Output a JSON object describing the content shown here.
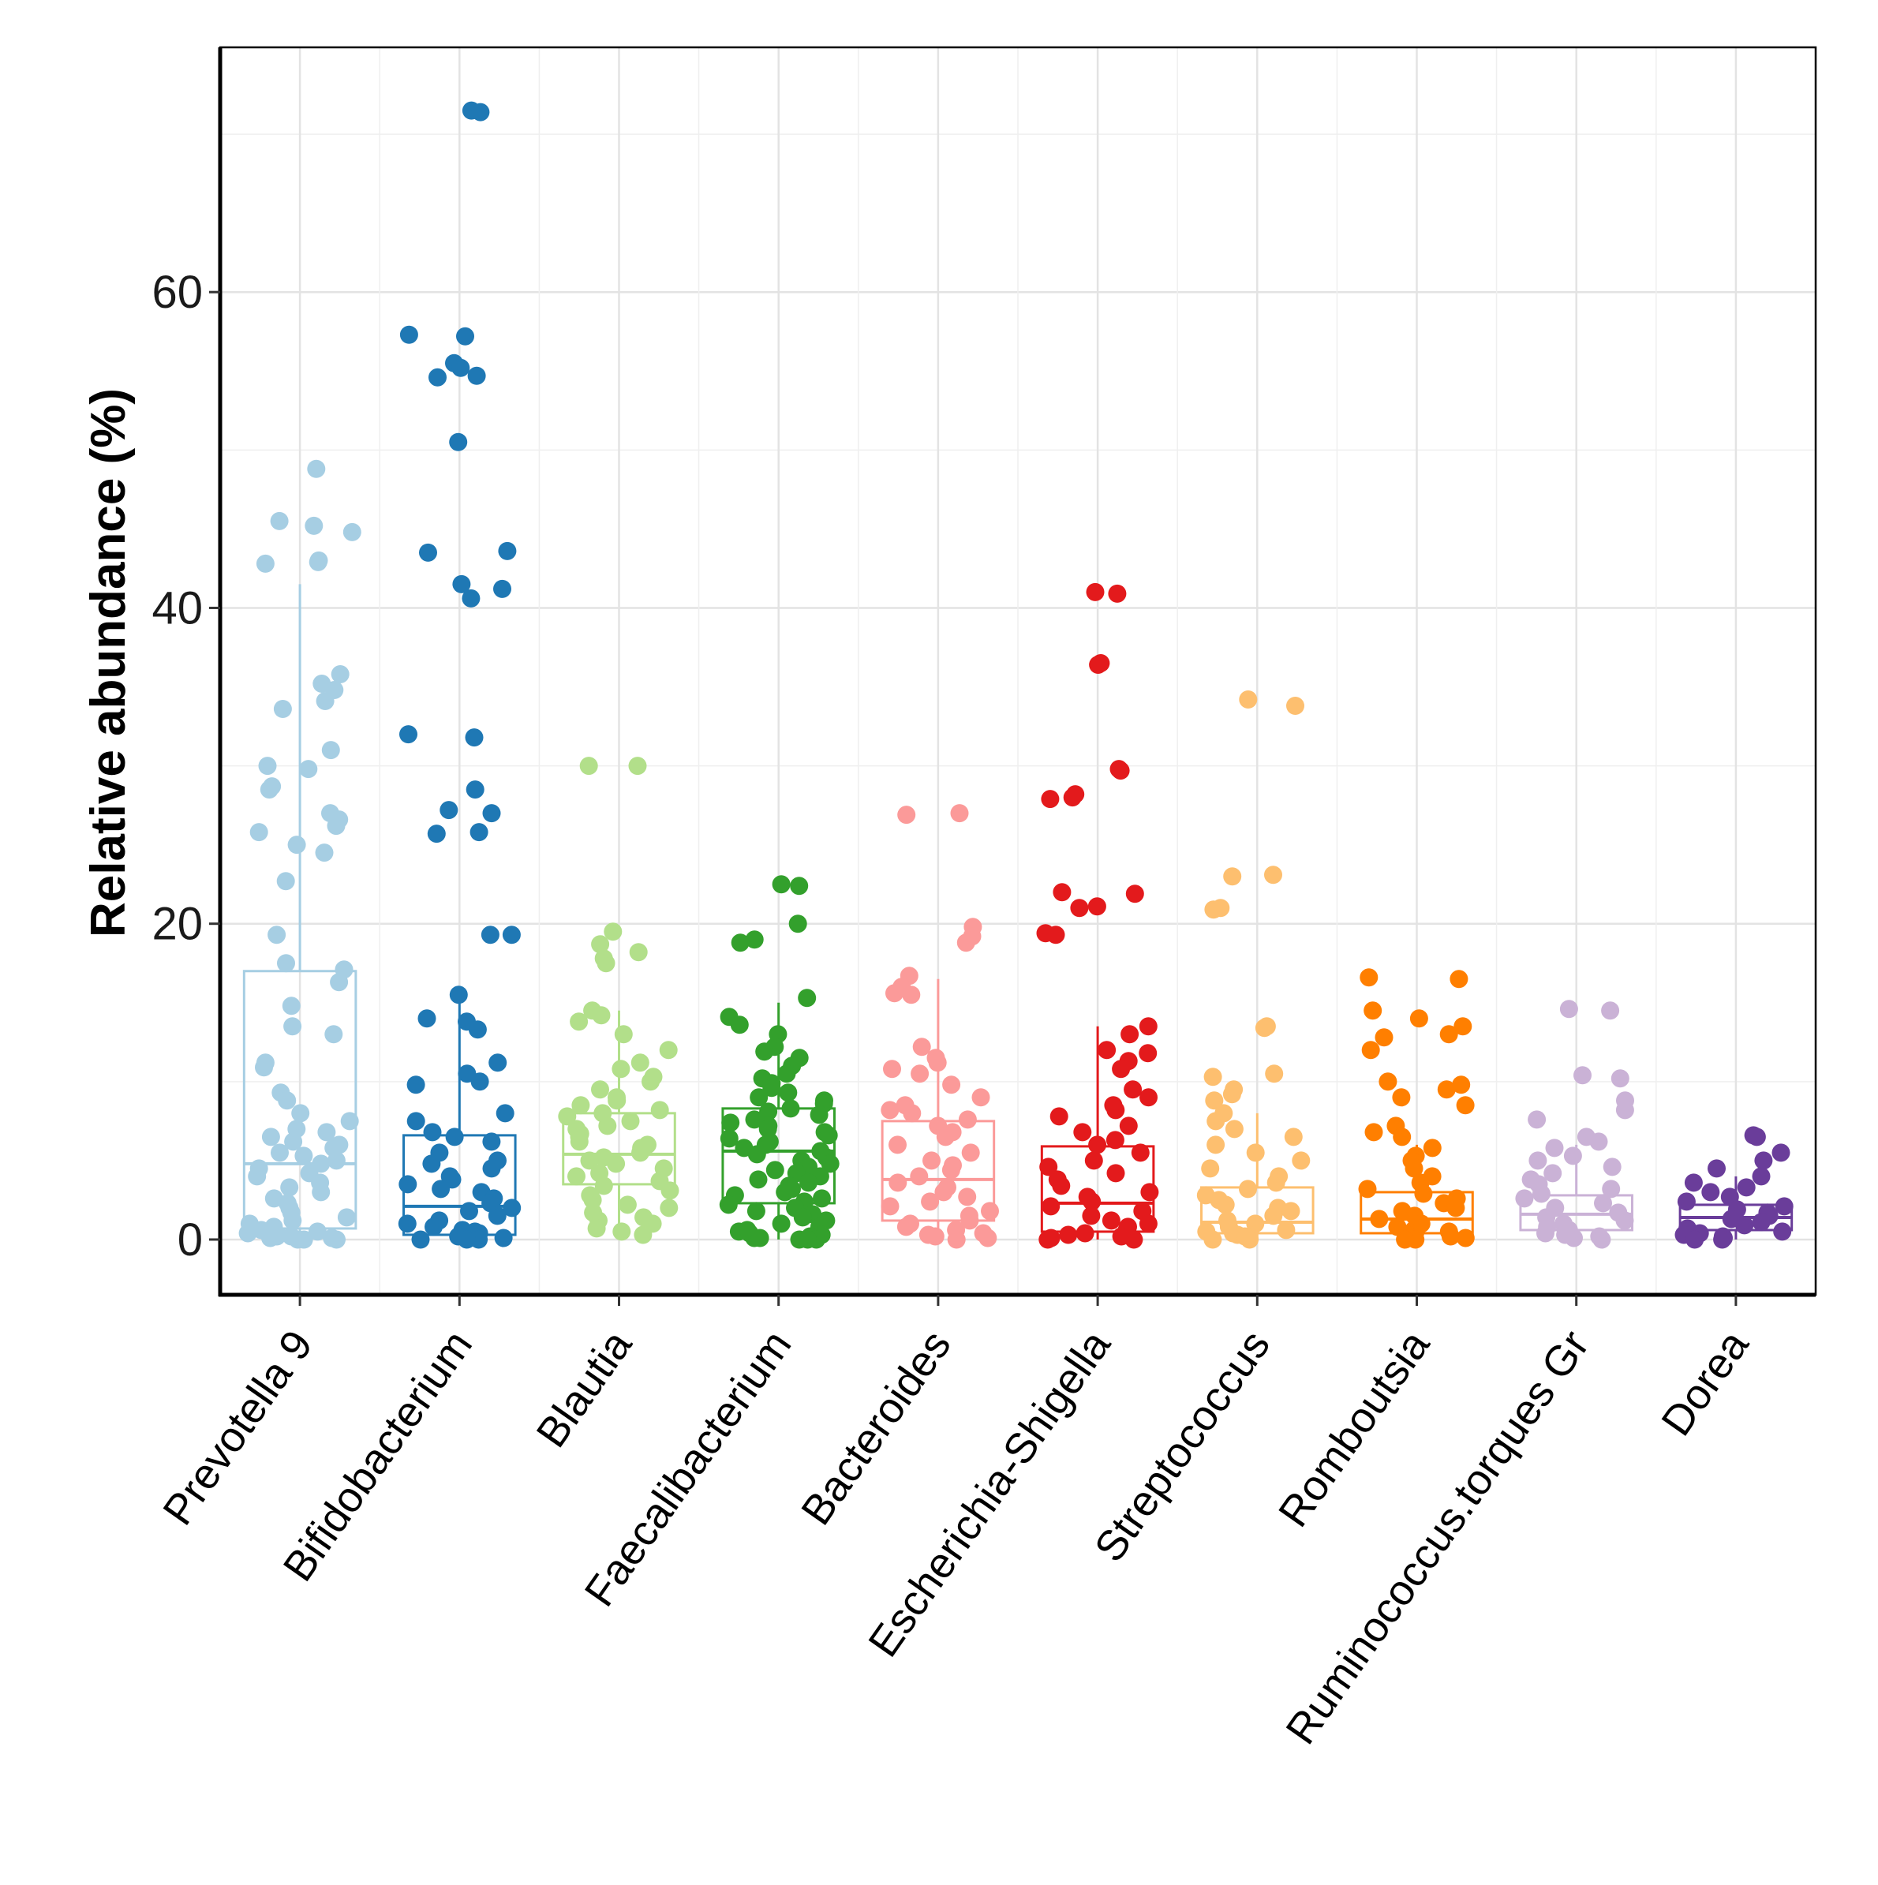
{
  "chart_data": {
    "type": "box-jitter",
    "title": "",
    "xlabel": "",
    "ylabel": "Relative abundance (%)",
    "ylim": [
      -3.5,
      75.5
    ],
    "yticks": [
      0,
      20,
      40,
      60
    ],
    "grid": true,
    "categories": [
      "Prevotella 9",
      "Bifidobacterium",
      "Blautia",
      "Faecalibacterium",
      "Bacteroides",
      "Escherichia-Shigella",
      "Streptococcus",
      "Romboutsia",
      "Ruminococcus.torques Gr",
      "Dorea"
    ],
    "colors": [
      "#a6cee3",
      "#1f78b4",
      "#b2df8a",
      "#33a02c",
      "#fb9a99",
      "#e31a1c",
      "#fdbf6f",
      "#ff7f00",
      "#cab2d6",
      "#6a3d9a"
    ],
    "boxes": [
      {
        "q1": 0.7,
        "median": 4.8,
        "q3": 17.0,
        "whisker_low": 0,
        "whisker_high": 41.5
      },
      {
        "q1": 0.3,
        "median": 2.1,
        "q3": 6.6,
        "whisker_low": 0,
        "whisker_high": 15.5
      },
      {
        "q1": 3.5,
        "median": 5.4,
        "q3": 8.0,
        "whisker_low": 0,
        "whisker_high": 14.5
      },
      {
        "q1": 2.3,
        "median": 5.6,
        "q3": 8.3,
        "whisker_low": 0,
        "whisker_high": 15.0
      },
      {
        "q1": 1.2,
        "median": 3.8,
        "q3": 7.5,
        "whisker_low": 0,
        "whisker_high": 16.5
      },
      {
        "q1": 0.5,
        "median": 2.3,
        "q3": 5.9,
        "whisker_low": 0,
        "whisker_high": 13.5
      },
      {
        "q1": 0.4,
        "median": 1.1,
        "q3": 3.3,
        "whisker_low": 0,
        "whisker_high": 8.0
      },
      {
        "q1": 0.4,
        "median": 1.3,
        "q3": 3.0,
        "whisker_low": 0,
        "whisker_high": 6.0
      },
      {
        "q1": 0.6,
        "median": 1.6,
        "q3": 2.8,
        "whisker_low": 0,
        "whisker_high": 6.0
      },
      {
        "q1": 0.6,
        "median": 1.4,
        "q3": 2.2,
        "whisker_low": 0,
        "whisker_high": 4.0
      }
    ],
    "points": [
      [
        48.8,
        45.5,
        45.2,
        44.8,
        43.0,
        42.9,
        42.8,
        35.8,
        35.2,
        34.8,
        34.1,
        33.6,
        31.0,
        30.0,
        29.8,
        28.7,
        28.5,
        27.0,
        26.6,
        26.2,
        25.8,
        25.0,
        24.5,
        22.7,
        19.3,
        17.5,
        17.1,
        16.3,
        14.8,
        13.5,
        13.0,
        11.2,
        10.9,
        9.3,
        8.8,
        8.0,
        7.5,
        7.0,
        6.8,
        6.5,
        6.2,
        6.0,
        5.8,
        5.5,
        5.3,
        5.0,
        4.8,
        4.5,
        4.2,
        4.0,
        3.6,
        3.3,
        3.0,
        2.6,
        2.3,
        2.0,
        1.7,
        1.4,
        1.2,
        1.0,
        0.8,
        0.6,
        0.5,
        0.4,
        0.3,
        0.2,
        0.2,
        0.1,
        0.1,
        0.0,
        0.0,
        0.0
      ],
      [
        71.5,
        71.4,
        57.3,
        57.2,
        55.5,
        55.2,
        54.7,
        54.6,
        50.5,
        43.6,
        43.5,
        41.5,
        41.2,
        40.6,
        32.0,
        31.8,
        28.5,
        27.2,
        27.0,
        25.8,
        25.7,
        19.3,
        19.3,
        15.5,
        14.0,
        13.8,
        13.3,
        11.2,
        10.5,
        10.0,
        9.8,
        8.0,
        7.5,
        6.8,
        6.5,
        6.2,
        5.5,
        5.0,
        4.8,
        4.5,
        4.0,
        3.8,
        3.5,
        3.2,
        3.0,
        2.6,
        2.3,
        2.0,
        1.8,
        1.5,
        1.2,
        1.0,
        0.8,
        0.6,
        0.5,
        0.4,
        0.3,
        0.2,
        0.1,
        0.1,
        0.0,
        0.0,
        0.0
      ],
      [
        30.0,
        30.0,
        19.5,
        18.7,
        18.2,
        17.8,
        17.5,
        14.5,
        14.2,
        13.8,
        13.0,
        12.0,
        11.2,
        10.8,
        10.3,
        10.0,
        9.5,
        9.0,
        8.8,
        8.5,
        8.2,
        8.0,
        7.8,
        7.5,
        7.2,
        7.0,
        6.7,
        6.5,
        6.2,
        6.0,
        5.8,
        5.5,
        5.2,
        5.0,
        4.8,
        4.5,
        4.2,
        4.0,
        3.7,
        3.4,
        3.1,
        2.8,
        2.5,
        2.2,
        2.0,
        1.7,
        1.4,
        1.2,
        1.0,
        0.7,
        0.5,
        0.3
      ],
      [
        22.5,
        22.4,
        20.0,
        19.0,
        18.8,
        15.3,
        14.1,
        13.6,
        13.0,
        12.2,
        11.9,
        11.5,
        11.0,
        10.5,
        10.2,
        9.9,
        9.6,
        9.3,
        9.0,
        8.8,
        8.6,
        8.3,
        8.1,
        7.9,
        7.6,
        7.4,
        7.2,
        7.0,
        6.8,
        6.6,
        6.4,
        6.2,
        6.0,
        5.8,
        5.6,
        5.4,
        5.2,
        5.0,
        4.8,
        4.6,
        4.4,
        4.2,
        4.0,
        3.8,
        3.6,
        3.4,
        3.2,
        3.0,
        2.8,
        2.6,
        2.4,
        2.2,
        2.0,
        1.8,
        1.6,
        1.4,
        1.2,
        1.0,
        0.8,
        0.6,
        0.5,
        0.4,
        0.3,
        0.2,
        0.1,
        0.1,
        0.0,
        0.0,
        0.0
      ],
      [
        27.0,
        26.9,
        19.8,
        19.2,
        18.8,
        16.7,
        16.0,
        15.6,
        15.5,
        12.2,
        11.5,
        11.2,
        10.8,
        10.5,
        9.8,
        9.0,
        8.5,
        8.2,
        8.0,
        7.6,
        7.2,
        6.8,
        6.5,
        6.0,
        5.5,
        5.0,
        4.7,
        4.4,
        4.0,
        3.6,
        3.3,
        3.0,
        2.7,
        2.4,
        2.1,
        1.8,
        1.5,
        1.2,
        1.0,
        0.8,
        0.6,
        0.4,
        0.3,
        0.2,
        0.1,
        0.0
      ],
      [
        41.0,
        40.9,
        36.5,
        36.4,
        29.8,
        29.7,
        28.2,
        28.0,
        27.9,
        22.0,
        21.9,
        21.1,
        21.0,
        19.4,
        19.3,
        13.5,
        13.0,
        12.0,
        11.8,
        11.3,
        10.8,
        9.5,
        9.0,
        8.5,
        8.2,
        7.8,
        7.2,
        6.8,
        6.3,
        6.0,
        5.5,
        5.0,
        4.6,
        4.2,
        3.8,
        3.4,
        3.0,
        2.7,
        2.4,
        2.1,
        1.8,
        1.5,
        1.2,
        1.0,
        0.8,
        0.6,
        0.4,
        0.3,
        0.2,
        0.1,
        0.0,
        0.0
      ],
      [
        34.2,
        33.8,
        23.1,
        23.0,
        21.0,
        20.9,
        13.5,
        13.4,
        10.5,
        10.3,
        9.5,
        9.2,
        8.8,
        8.0,
        7.5,
        7.0,
        6.5,
        6.0,
        5.5,
        5.0,
        4.5,
        4.0,
        3.6,
        3.2,
        2.8,
        2.5,
        2.2,
        2.0,
        1.8,
        1.5,
        1.2,
        1.0,
        0.8,
        0.6,
        0.5,
        0.4,
        0.3,
        0.2,
        0.1,
        0.0,
        0.0
      ],
      [
        16.6,
        16.5,
        14.5,
        14.0,
        13.5,
        13.0,
        12.8,
        12.0,
        10.0,
        9.8,
        9.5,
        9.0,
        8.5,
        7.2,
        6.8,
        6.5,
        5.8,
        5.3,
        5.0,
        4.5,
        4.0,
        3.6,
        3.2,
        2.9,
        2.6,
        2.3,
        2.0,
        1.8,
        1.5,
        1.3,
        1.0,
        0.8,
        0.6,
        0.5,
        0.4,
        0.3,
        0.2,
        0.1,
        0.0,
        0.0
      ],
      [
        14.6,
        14.5,
        10.4,
        10.2,
        8.8,
        8.2,
        7.6,
        6.5,
        6.2,
        5.8,
        5.3,
        5.0,
        4.6,
        4.2,
        3.8,
        3.5,
        3.2,
        2.9,
        2.6,
        2.3,
        2.0,
        1.7,
        1.4,
        1.2,
        1.0,
        0.8,
        0.6,
        0.4,
        0.3,
        0.2,
        0.1,
        0.0
      ],
      [
        6.6,
        6.5,
        5.5,
        5.0,
        4.5,
        4.0,
        3.6,
        3.3,
        3.0,
        2.7,
        2.4,
        2.1,
        1.9,
        1.7,
        1.5,
        1.3,
        1.1,
        0.9,
        0.7,
        0.5,
        0.4,
        0.3,
        0.2,
        0.1,
        0.0,
        0.0
      ]
    ]
  }
}
